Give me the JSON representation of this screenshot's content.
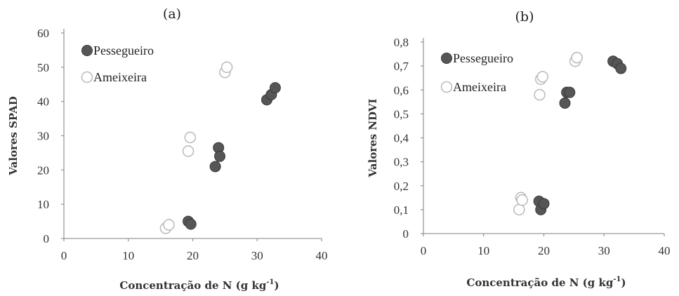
{
  "chart_data": [
    {
      "type": "scatter",
      "panel_label": "(a)",
      "ylabel": "Valores SPAD",
      "xlabel": "Concentração de N (g kg",
      "xlabel_sup": "-1",
      "xlabel_close": ")",
      "xlim": [
        0,
        40
      ],
      "ylim": [
        0,
        60
      ],
      "x_ticks": [
        0,
        10,
        20,
        30,
        40
      ],
      "y_ticks": [
        0,
        10,
        20,
        30,
        40,
        50,
        60
      ],
      "legend_position": "top-left",
      "series": [
        {
          "name": "Pessegueiro",
          "color": "#555555",
          "marker": "filled-circle",
          "points": [
            [
              19.3,
              5
            ],
            [
              19.7,
              4.2
            ],
            [
              23.5,
              21
            ],
            [
              24,
              26.5
            ],
            [
              24.2,
              24
            ],
            [
              31.5,
              40.5
            ],
            [
              32.2,
              42
            ],
            [
              32.8,
              44
            ]
          ]
        },
        {
          "name": "Ameixeira",
          "color": "#ffffff",
          "marker": "open-circle",
          "points": [
            [
              15.8,
              3
            ],
            [
              16.3,
              4
            ],
            [
              19.3,
              25.5
            ],
            [
              19.6,
              29.5
            ],
            [
              25,
              48.5
            ],
            [
              25.3,
              50
            ]
          ]
        }
      ]
    },
    {
      "type": "scatter",
      "panel_label": "(b)",
      "ylabel": "Valores NDVI",
      "xlabel": "Concentração de N (g kg",
      "xlabel_sup": "-1",
      "xlabel_close": ")",
      "xlim": [
        0,
        40
      ],
      "ylim": [
        0,
        0.8
      ],
      "x_ticks": [
        0,
        10,
        20,
        30,
        40
      ],
      "y_ticks": [
        "0",
        "0,1",
        "0,2",
        "0,3",
        "0,4",
        "0,5",
        "0,6",
        "0,7",
        "0,8"
      ],
      "legend_position": "top-left",
      "series": [
        {
          "name": "Pessegueiro",
          "color": "#555555",
          "marker": "filled-circle",
          "points": [
            [
              19.2,
              0.135
            ],
            [
              19.5,
              0.1
            ],
            [
              20,
              0.125
            ],
            [
              23.5,
              0.545
            ],
            [
              23.8,
              0.59
            ],
            [
              24.3,
              0.59
            ],
            [
              31.5,
              0.72
            ],
            [
              32.2,
              0.71
            ],
            [
              32.8,
              0.69
            ]
          ]
        },
        {
          "name": "Ameixeira",
          "color": "#ffffff",
          "marker": "open-circle",
          "points": [
            [
              15.9,
              0.1
            ],
            [
              16.2,
              0.15
            ],
            [
              16.4,
              0.14
            ],
            [
              19.3,
              0.58
            ],
            [
              19.5,
              0.645
            ],
            [
              19.8,
              0.655
            ],
            [
              25.2,
              0.72
            ],
            [
              25.5,
              0.735
            ]
          ]
        }
      ]
    }
  ]
}
